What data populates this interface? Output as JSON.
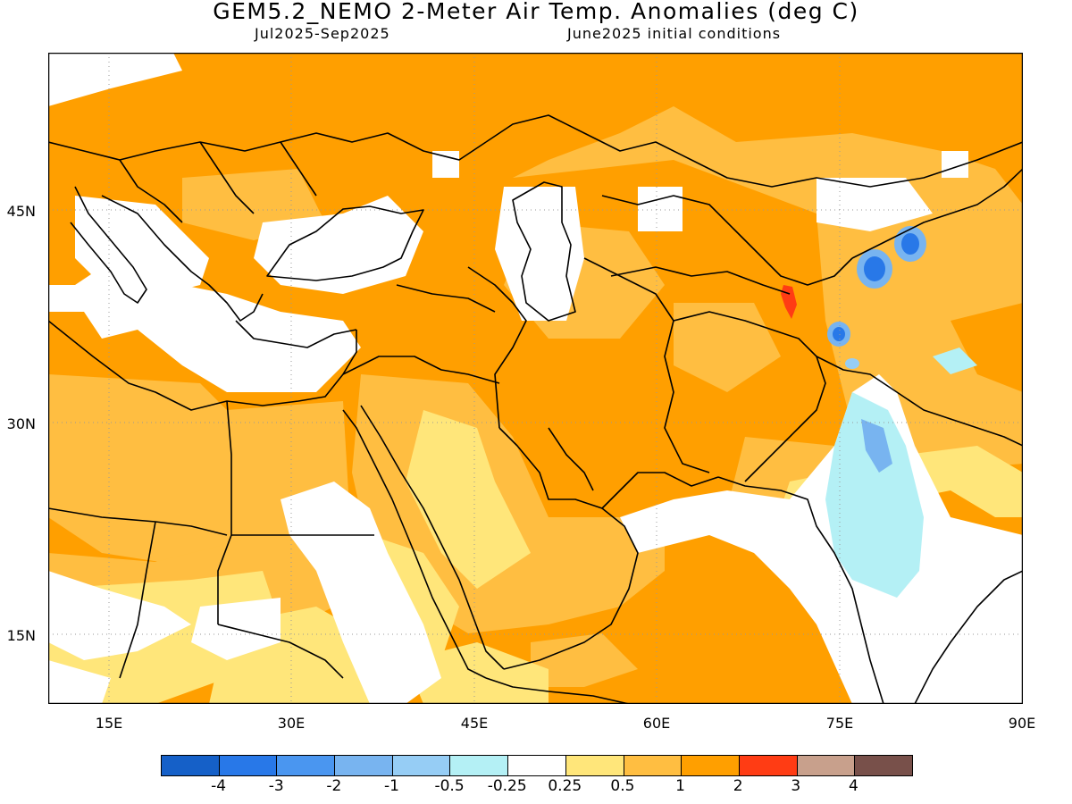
{
  "header": {
    "title": "GEM5.2_NEMO 2-Meter Air Temp. Anomalies (deg C)",
    "period": "Jul2025-Sep2025",
    "init": "June2025 initial conditions"
  },
  "map": {
    "region": "Middle East and South Asia",
    "lon_range": [
      10,
      90
    ],
    "lat_range": [
      9,
      57
    ],
    "lat_labels": [
      "45N",
      "30N",
      "15N"
    ],
    "lon_labels": [
      "15E",
      "30E",
      "45E",
      "60E",
      "75E",
      "90E"
    ],
    "grid": "dotted"
  },
  "colorbar": {
    "colors": [
      "#1560c8",
      "#2878e8",
      "#4a96f0",
      "#78b4f0",
      "#96cdf5",
      "#b4f0f5",
      "#ffffff",
      "#ffe67a",
      "#ffbe41",
      "#ff9f00",
      "#ff3c14",
      "#c8a08c",
      "#78504a"
    ],
    "labels": [
      "-4",
      "-3",
      "-2",
      "-1",
      "-0.5",
      "-0.25",
      "0.25",
      "0.5",
      "1",
      "2",
      "3",
      "4"
    ]
  }
}
